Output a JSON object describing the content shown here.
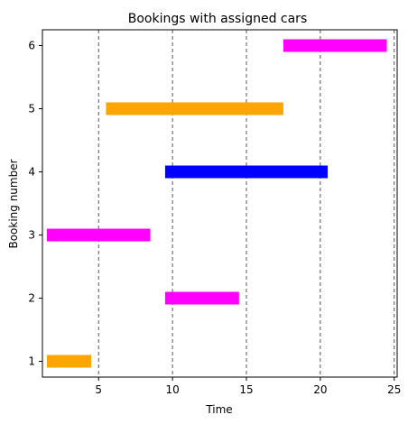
{
  "chart_data": {
    "type": "bar",
    "orientation": "horizontal",
    "title": "Bookings with assigned cars",
    "xlabel": "Time",
    "ylabel": "Booking number",
    "xlim": [
      1.2,
      25.2
    ],
    "ylim": [
      0.75,
      6.25
    ],
    "xticks": [
      5,
      10,
      15,
      20,
      25
    ],
    "yticks": [
      1,
      2,
      3,
      4,
      5,
      6
    ],
    "vlines": [
      5,
      10,
      15,
      20,
      25
    ],
    "bars": [
      {
        "booking": 1,
        "start": 1.5,
        "end": 4.5,
        "color": "#ffa500"
      },
      {
        "booking": 2,
        "start": 9.5,
        "end": 14.5,
        "color": "#ff00ff"
      },
      {
        "booking": 3,
        "start": 1.5,
        "end": 8.5,
        "color": "#ff00ff"
      },
      {
        "booking": 4,
        "start": 9.5,
        "end": 20.5,
        "color": "#0000ff"
      },
      {
        "booking": 5,
        "start": 5.5,
        "end": 17.5,
        "color": "#ffa500"
      },
      {
        "booking": 6,
        "start": 17.5,
        "end": 24.5,
        "color": "#ff00ff"
      }
    ]
  }
}
